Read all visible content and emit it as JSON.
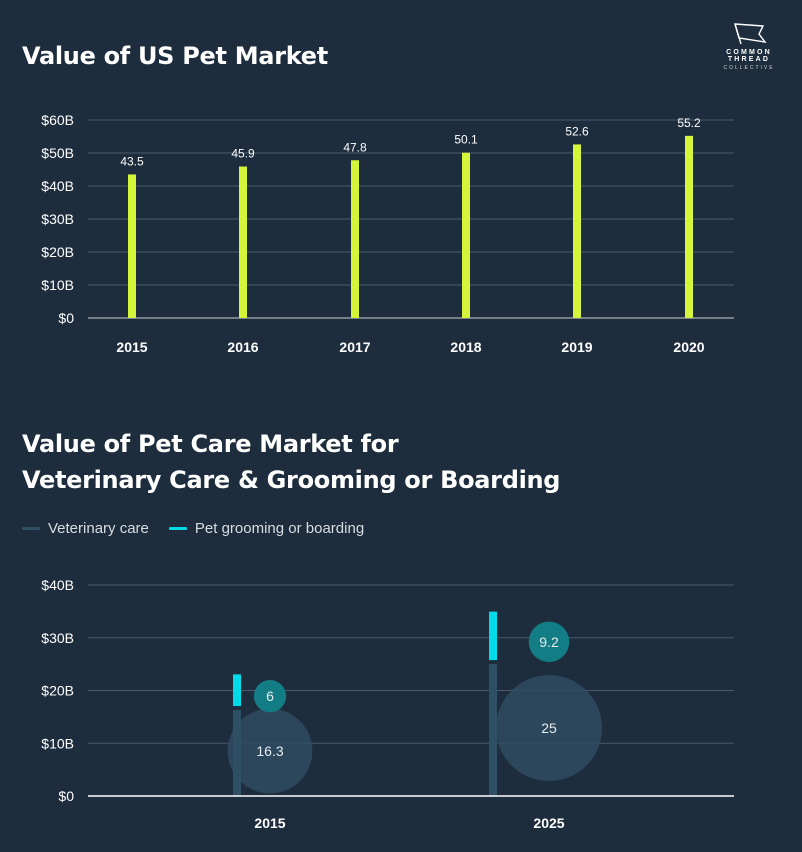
{
  "logo": {
    "line1": "COMMON THREAD",
    "line2": "COLLECTIVE"
  },
  "colors": {
    "background": "#1e2d3d",
    "bar": "#d5f53a",
    "vet": "#2f5064",
    "grooming": "#00dbe8",
    "bubble_vet": "#2f4b62",
    "bubble_groom": "#137d85",
    "grid": "#4a5a6a"
  },
  "chart_data": [
    {
      "type": "bar",
      "title": "Value of US Pet Market",
      "categories": [
        "2015",
        "2016",
        "2017",
        "2018",
        "2019",
        "2020"
      ],
      "values": [
        43.5,
        45.9,
        47.8,
        50.1,
        52.6,
        55.2
      ],
      "value_labels": [
        "43.5",
        "45.9",
        "47.8",
        "50.1",
        "52.6",
        "55.2"
      ],
      "ylim": [
        0,
        60
      ],
      "yticks": [
        0,
        10,
        20,
        30,
        40,
        50,
        60
      ],
      "ytick_labels": [
        "$0",
        "$10B",
        "$20B",
        "$30B",
        "$40B",
        "$50B",
        "$60B"
      ],
      "grid": true
    },
    {
      "type": "bar",
      "title_line1": "Value of Pet Care Market for",
      "title_line2": "Veterinary Care & Grooming or Boarding",
      "categories": [
        "2015",
        "2025"
      ],
      "series": [
        {
          "name": "Veterinary care",
          "values": [
            16.3,
            25
          ],
          "value_labels": [
            "16.3",
            "25"
          ]
        },
        {
          "name": "Pet grooming or boarding",
          "values": [
            6,
            9.2
          ],
          "value_labels": [
            "6",
            "9.2"
          ]
        }
      ],
      "stacked": true,
      "ylim": [
        0,
        40
      ],
      "yticks": [
        0,
        10,
        20,
        30,
        40
      ],
      "ytick_labels": [
        "$0",
        "$10B",
        "$20B",
        "$30B",
        "$40B"
      ],
      "legend": "top-left",
      "grid": true
    }
  ]
}
